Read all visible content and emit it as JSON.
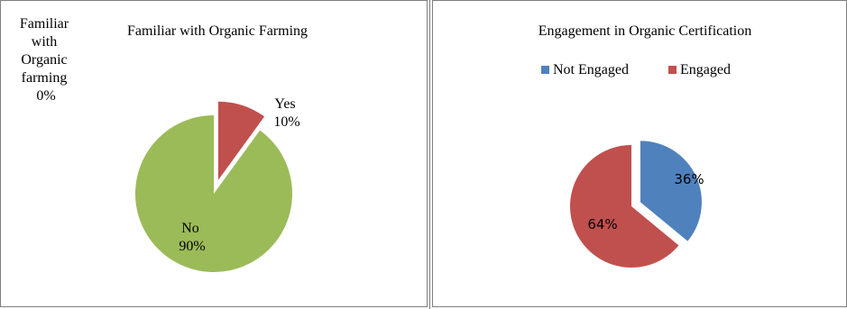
{
  "chart_data": [
    {
      "type": "pie",
      "title": "Familiar with Organic Farming",
      "categories": [
        "Familiar with Organic farming",
        "Yes",
        "No"
      ],
      "values": [
        0,
        10,
        90
      ],
      "value_labels": [
        "0%",
        "10%",
        "90%"
      ],
      "colors": [
        "#4f81bd",
        "#c0504d",
        "#9bbb59"
      ],
      "exploded": "Yes",
      "legend": "none"
    },
    {
      "type": "pie",
      "title": "Engagement in Organic Certification",
      "categories": [
        "Not Engaged",
        "Engaged"
      ],
      "values": [
        36,
        64
      ],
      "value_labels": [
        "36%",
        "64%"
      ],
      "colors": [
        "#4f81bd",
        "#c0504d"
      ],
      "exploded": "Not Engaged",
      "legend": "top"
    }
  ]
}
